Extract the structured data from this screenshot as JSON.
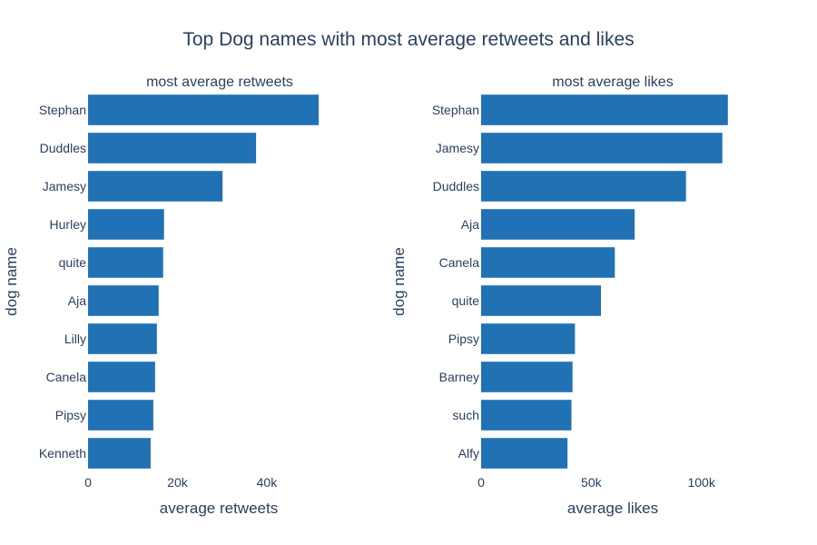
{
  "figure": {
    "title": "Top Dog names with most average retweets and likes"
  },
  "chart_data": [
    {
      "type": "bar",
      "orientation": "horizontal",
      "title": "most average retweets",
      "xlabel": "average retweets",
      "ylabel": "dog name",
      "categories": [
        "Stephan",
        "Duddles",
        "Jamesy",
        "Hurley",
        "quite",
        "Aja",
        "Lilly",
        "Canela",
        "Pipsy",
        "Kenneth"
      ],
      "values": [
        51600,
        37600,
        30100,
        17000,
        16800,
        15800,
        15400,
        15000,
        14600,
        14000
      ],
      "xlim": [
        0,
        58500
      ],
      "xticks": [
        0,
        20000,
        40000
      ],
      "xtick_labels": [
        "0",
        "20k",
        "40k"
      ],
      "color": "#2171b5",
      "grid": false
    },
    {
      "type": "bar",
      "orientation": "horizontal",
      "title": "most average likes",
      "xlabel": "average likes",
      "ylabel": "dog name",
      "categories": [
        "Stephan",
        "Jamesy",
        "Duddles",
        "Aja",
        "Canela",
        "quite",
        "Pipsy",
        "Barney",
        "such",
        "Alfy"
      ],
      "values": [
        112000,
        109500,
        93000,
        69700,
        60700,
        54400,
        42600,
        41500,
        41000,
        39200
      ],
      "xlim": [
        0,
        119500
      ],
      "xticks": [
        0,
        50000,
        100000
      ],
      "xtick_labels": [
        "0",
        "50k",
        "100k"
      ],
      "color": "#2171b5",
      "grid": false
    }
  ]
}
